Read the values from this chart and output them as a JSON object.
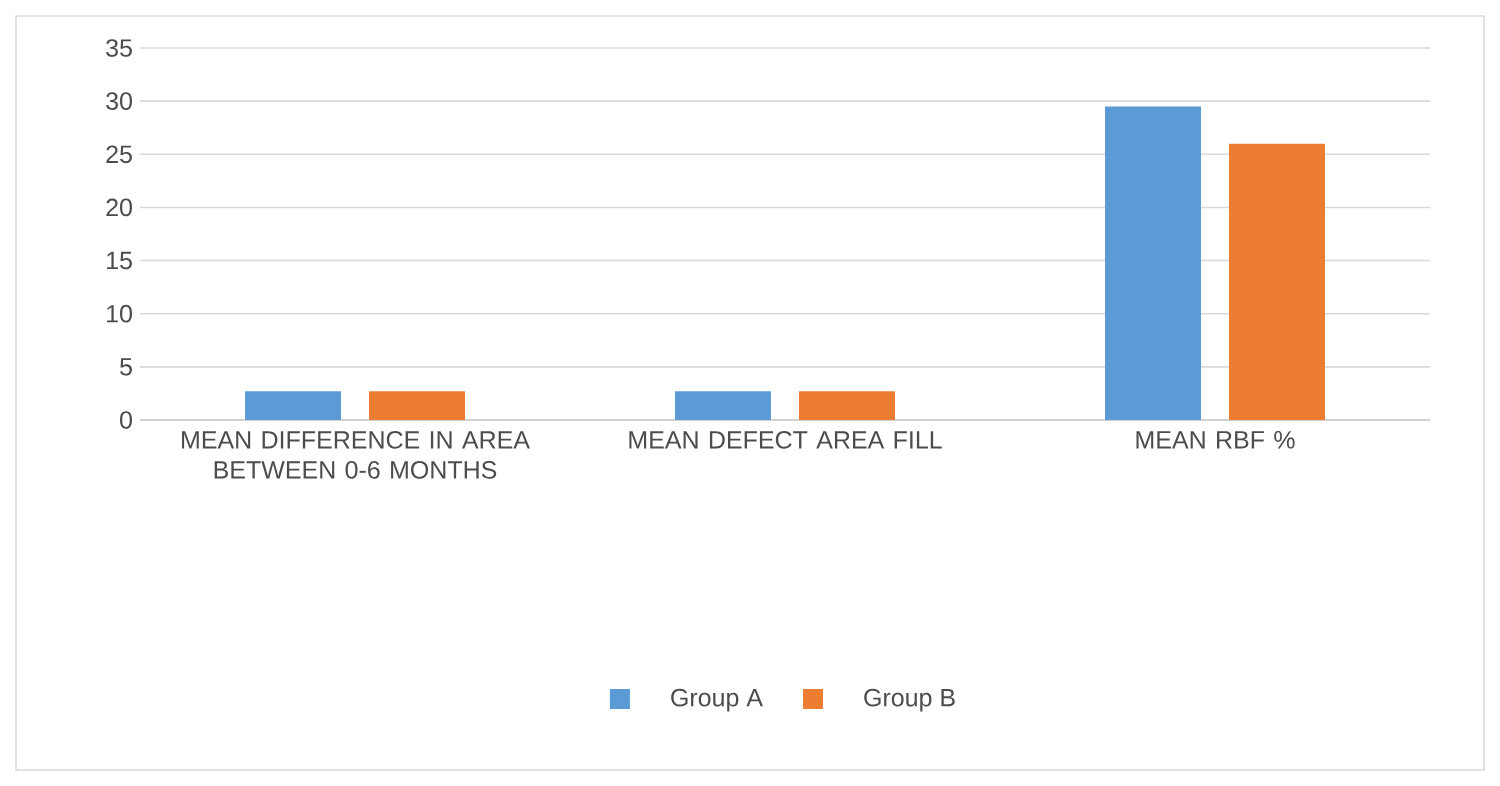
{
  "chart_data": {
    "type": "bar",
    "categories": [
      "MEAN DIFFERENCE IN AREA BETWEEN 0-6 MONTHS",
      "MEAN DEFECT AREA FILL",
      "MEAN RBF %"
    ],
    "series": [
      {
        "name": "Group A",
        "color": "#5b9bd5",
        "values": [
          2.7,
          2.7,
          29.5
        ]
      },
      {
        "name": "Group B",
        "color": "#ed7d31",
        "values": [
          2.7,
          2.7,
          26
        ]
      }
    ],
    "ylim": [
      0,
      35
    ],
    "yticks": [
      0,
      5,
      10,
      15,
      20,
      25,
      30,
      35
    ],
    "grid": "y",
    "legend": "bottom"
  }
}
